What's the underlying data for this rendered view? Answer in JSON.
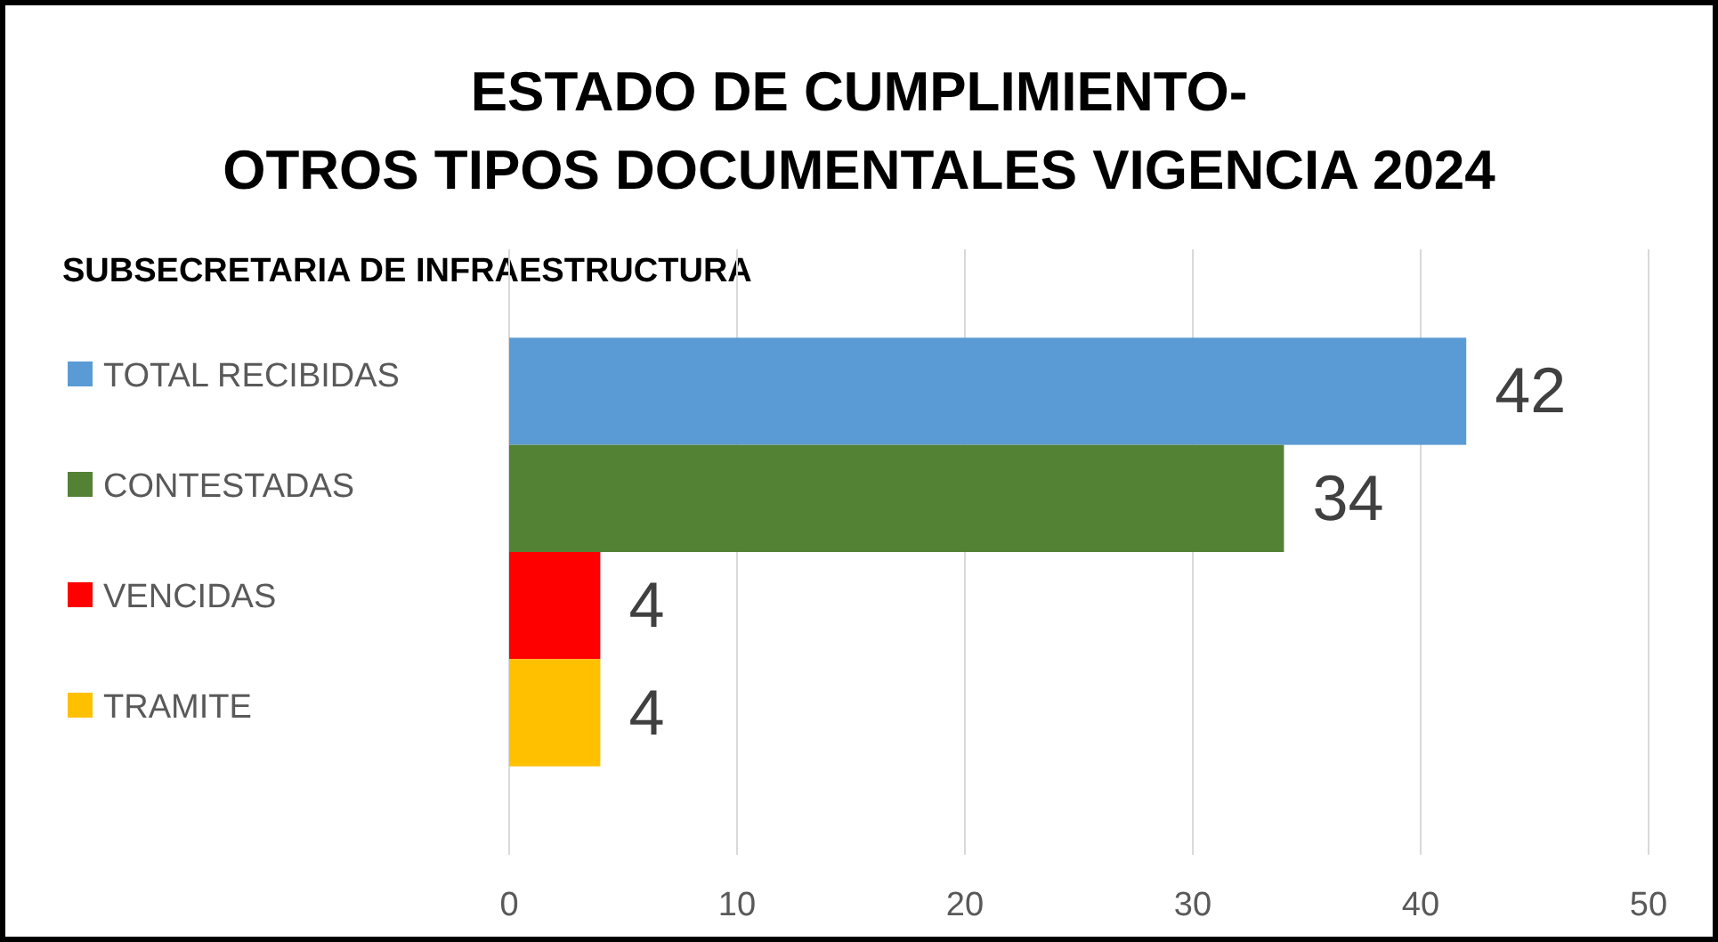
{
  "chart_data": {
    "type": "bar",
    "orientation": "horizontal",
    "title": "ESTADO DE  CUMPLIMIENTO- OTROS TIPOS DOCUMENTALES VIGENCIA 2024",
    "subtitle": "SUBSECRETARIA DE INFRAESTRUCTURA",
    "categories": [
      null
    ],
    "series": [
      {
        "name": "TOTAL RECIBIDAS",
        "color": "#5b9bd5",
        "values": [
          42
        ]
      },
      {
        "name": "CONTESTADAS",
        "color": "#548235",
        "values": [
          34
        ]
      },
      {
        "name": "VENCIDAS",
        "color": "#ff0000",
        "values": [
          4
        ]
      },
      {
        "name": "TRAMITE",
        "color": "#ffc000",
        "values": [
          4
        ]
      }
    ],
    "xlim": [
      0,
      50
    ],
    "xticks": [
      0,
      10,
      20,
      30,
      40,
      50
    ],
    "grid": "x",
    "legend": "left",
    "data_labels": true
  }
}
